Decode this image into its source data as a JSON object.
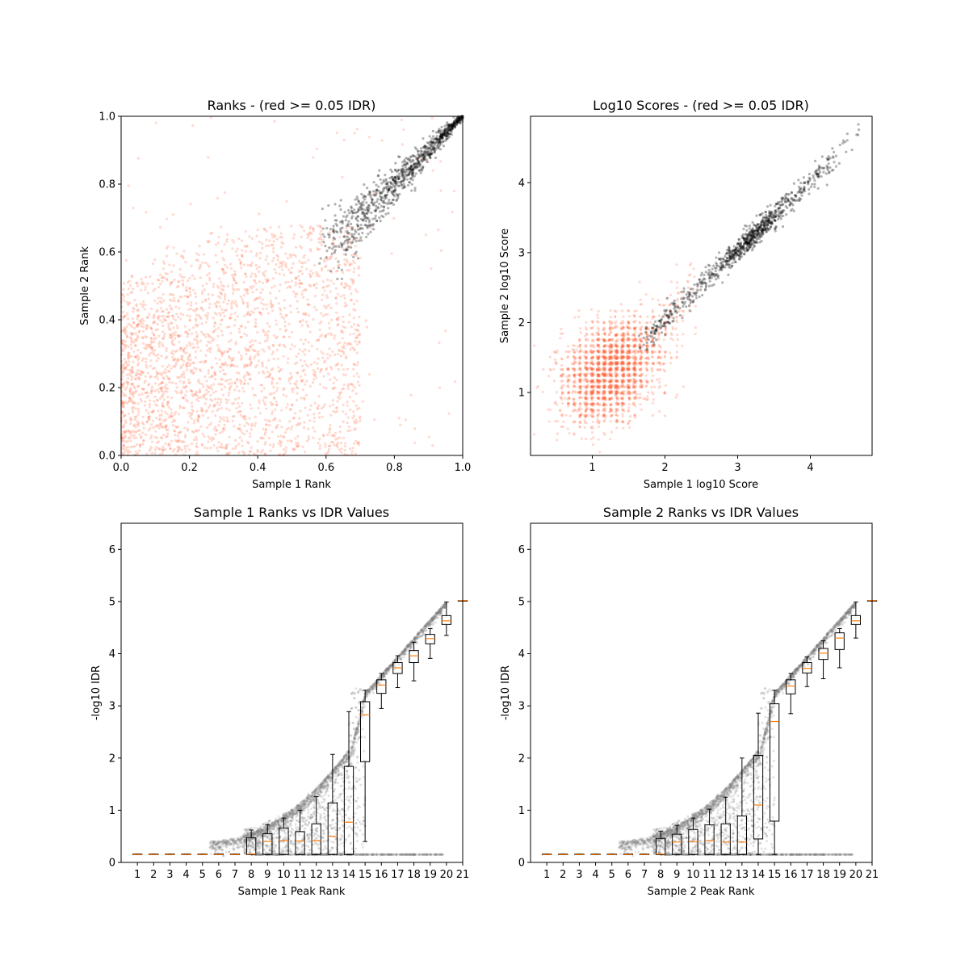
{
  "figure": {
    "background": "#ffffff",
    "colors": {
      "passed": "#000000",
      "failed": "#ff6a45",
      "median": "#ff7f0e",
      "box": "#000000"
    }
  },
  "chart_data": [
    {
      "type": "scatter",
      "title": "Ranks - (red >= 0.05 IDR)",
      "xlabel": "Sample 1 Rank",
      "ylabel": "Sample 2 Rank",
      "xlim": [
        0.0,
        1.0
      ],
      "ylim": [
        0.0,
        1.0
      ],
      "xticks": [
        "0.0",
        "0.2",
        "0.4",
        "0.6",
        "0.8",
        "1.0"
      ],
      "yticks": [
        "0.0",
        "0.2",
        "0.4",
        "0.6",
        "0.8",
        "1.0"
      ],
      "grid": false,
      "series": [
        {
          "color": "#ff6a45",
          "description": "IDR >= 0.05",
          "points_approx": 2600,
          "region": "x 0.0-0.7, y 0.0-0.68, diffuse"
        },
        {
          "color": "#000000",
          "description": "IDR < 0.05",
          "points_approx": 900,
          "region": "diagonal band from (0.6, 0.6) to (1.0, 1.0)"
        }
      ]
    },
    {
      "type": "scatter",
      "title": "Log10 Scores - (red >= 0.05 IDR)",
      "xlabel": "Sample 1 log10 Score",
      "ylabel": "Sample 2 log10 Score",
      "xlim": [
        0.15,
        4.85
      ],
      "ylim": [
        0.1,
        4.95
      ],
      "xticks": [
        "1",
        "2",
        "3",
        "4"
      ],
      "yticks": [
        "1",
        "2",
        "3",
        "4"
      ],
      "grid": false,
      "series": [
        {
          "color": "#ff6a45",
          "description": "IDR >= 0.05",
          "points_approx": 2400,
          "region": "cluster centred near (1.25, 1.3), spread 0.3-2.2"
        },
        {
          "color": "#000000",
          "description": "IDR < 0.05",
          "points_approx": 900,
          "region": "diagonal band from (1.7, 1.7) to (4.7, 4.7), densest near (3.2, 3.25)"
        }
      ]
    },
    {
      "type": "box",
      "title": "Sample 1 Ranks vs IDR Values",
      "xlabel": "Sample 1 Peak Rank",
      "ylabel": "-log10 IDR",
      "xlim": [
        0,
        21
      ],
      "ylim": [
        0,
        6.5
      ],
      "xticks": [
        "1",
        "2",
        "3",
        "4",
        "5",
        "6",
        "7",
        "8",
        "9",
        "10",
        "11",
        "12",
        "13",
        "14",
        "15",
        "16",
        "17",
        "18",
        "19",
        "20",
        "21"
      ],
      "yticks": [
        "0",
        "1",
        "2",
        "3",
        "4",
        "5",
        "6"
      ],
      "grid": false,
      "boxes": [
        {
          "x": 1,
          "q1": 0.15,
          "median": 0.15,
          "q3": 0.16,
          "lo": 0.15,
          "hi": 0.16
        },
        {
          "x": 2,
          "q1": 0.15,
          "median": 0.15,
          "q3": 0.16,
          "lo": 0.15,
          "hi": 0.16
        },
        {
          "x": 3,
          "q1": 0.15,
          "median": 0.15,
          "q3": 0.16,
          "lo": 0.15,
          "hi": 0.16
        },
        {
          "x": 4,
          "q1": 0.15,
          "median": 0.15,
          "q3": 0.16,
          "lo": 0.15,
          "hi": 0.16
        },
        {
          "x": 5,
          "q1": 0.15,
          "median": 0.15,
          "q3": 0.16,
          "lo": 0.15,
          "hi": 0.16
        },
        {
          "x": 6,
          "q1": 0.15,
          "median": 0.15,
          "q3": 0.16,
          "lo": 0.15,
          "hi": 0.16
        },
        {
          "x": 7,
          "q1": 0.15,
          "median": 0.15,
          "q3": 0.16,
          "lo": 0.15,
          "hi": 0.16
        },
        {
          "x": 8,
          "q1": 0.15,
          "median": 0.16,
          "q3": 0.47,
          "lo": 0.15,
          "hi": 0.62
        },
        {
          "x": 9,
          "q1": 0.15,
          "median": 0.4,
          "q3": 0.55,
          "lo": 0.15,
          "hi": 0.72
        },
        {
          "x": 10,
          "q1": 0.15,
          "median": 0.42,
          "q3": 0.66,
          "lo": 0.15,
          "hi": 0.85
        },
        {
          "x": 11,
          "q1": 0.15,
          "median": 0.41,
          "q3": 0.59,
          "lo": 0.15,
          "hi": 1.0
        },
        {
          "x": 12,
          "q1": 0.15,
          "median": 0.42,
          "q3": 0.74,
          "lo": 0.15,
          "hi": 1.26
        },
        {
          "x": 13,
          "q1": 0.15,
          "median": 0.5,
          "q3": 1.14,
          "lo": 0.15,
          "hi": 2.07
        },
        {
          "x": 14,
          "q1": 0.15,
          "median": 0.77,
          "q3": 1.84,
          "lo": 0.15,
          "hi": 2.89
        },
        {
          "x": 15,
          "q1": 1.93,
          "median": 2.83,
          "q3": 3.08,
          "lo": 0.4,
          "hi": 3.3
        },
        {
          "x": 16,
          "q1": 3.24,
          "median": 3.4,
          "q3": 3.5,
          "lo": 2.95,
          "hi": 3.62
        },
        {
          "x": 17,
          "q1": 3.62,
          "median": 3.73,
          "q3": 3.83,
          "lo": 3.35,
          "hi": 3.96
        },
        {
          "x": 18,
          "q1": 3.83,
          "median": 3.96,
          "q3": 4.06,
          "lo": 3.48,
          "hi": 4.22
        },
        {
          "x": 19,
          "q1": 4.19,
          "median": 4.29,
          "q3": 4.37,
          "lo": 3.91,
          "hi": 4.48
        },
        {
          "x": 20,
          "q1": 4.56,
          "median": 4.63,
          "q3": 4.73,
          "lo": 4.35,
          "hi": 4.99
        },
        {
          "x": 21,
          "q1": 5.02,
          "median": 5.02,
          "q3": 5.02,
          "lo": 5.02,
          "hi": 5.02
        }
      ],
      "background_points": {
        "color": "#808080",
        "points_approx": 3500,
        "description": "per-peak -log10 IDR values, curving from ~0.4 at rank 5.4 to 5.0 at rank 20"
      }
    },
    {
      "type": "box",
      "title": "Sample 2 Ranks vs IDR Values",
      "xlabel": "Sample 2 Peak Rank",
      "ylabel": "-log10 IDR",
      "xlim": [
        0,
        21
      ],
      "ylim": [
        0,
        6.5
      ],
      "xticks": [
        "1",
        "2",
        "3",
        "4",
        "5",
        "6",
        "7",
        "8",
        "9",
        "10",
        "11",
        "12",
        "13",
        "14",
        "15",
        "16",
        "17",
        "18",
        "19",
        "20",
        "21"
      ],
      "yticks": [
        "0",
        "1",
        "2",
        "3",
        "4",
        "5",
        "6"
      ],
      "grid": false,
      "boxes": [
        {
          "x": 1,
          "q1": 0.15,
          "median": 0.15,
          "q3": 0.16,
          "lo": 0.15,
          "hi": 0.16
        },
        {
          "x": 2,
          "q1": 0.15,
          "median": 0.15,
          "q3": 0.16,
          "lo": 0.15,
          "hi": 0.16
        },
        {
          "x": 3,
          "q1": 0.15,
          "median": 0.15,
          "q3": 0.16,
          "lo": 0.15,
          "hi": 0.16
        },
        {
          "x": 4,
          "q1": 0.15,
          "median": 0.15,
          "q3": 0.16,
          "lo": 0.15,
          "hi": 0.16
        },
        {
          "x": 5,
          "q1": 0.15,
          "median": 0.15,
          "q3": 0.16,
          "lo": 0.15,
          "hi": 0.16
        },
        {
          "x": 6,
          "q1": 0.15,
          "median": 0.15,
          "q3": 0.16,
          "lo": 0.15,
          "hi": 0.16
        },
        {
          "x": 7,
          "q1": 0.15,
          "median": 0.15,
          "q3": 0.16,
          "lo": 0.15,
          "hi": 0.16
        },
        {
          "x": 8,
          "q1": 0.15,
          "median": 0.16,
          "q3": 0.46,
          "lo": 0.15,
          "hi": 0.6
        },
        {
          "x": 9,
          "q1": 0.15,
          "median": 0.39,
          "q3": 0.54,
          "lo": 0.15,
          "hi": 0.71
        },
        {
          "x": 10,
          "q1": 0.15,
          "median": 0.4,
          "q3": 0.63,
          "lo": 0.15,
          "hi": 0.85
        },
        {
          "x": 11,
          "q1": 0.15,
          "median": 0.42,
          "q3": 0.72,
          "lo": 0.15,
          "hi": 1.02
        },
        {
          "x": 12,
          "q1": 0.15,
          "median": 0.39,
          "q3": 0.74,
          "lo": 0.15,
          "hi": 1.25
        },
        {
          "x": 13,
          "q1": 0.15,
          "median": 0.39,
          "q3": 0.89,
          "lo": 0.15,
          "hi": 2.0
        },
        {
          "x": 14,
          "q1": 0.45,
          "median": 1.1,
          "q3": 2.05,
          "lo": 0.15,
          "hi": 2.86
        },
        {
          "x": 15,
          "q1": 0.79,
          "median": 2.7,
          "q3": 3.04,
          "lo": 0.15,
          "hi": 3.3
        },
        {
          "x": 16,
          "q1": 3.23,
          "median": 3.38,
          "q3": 3.5,
          "lo": 2.85,
          "hi": 3.62
        },
        {
          "x": 17,
          "q1": 3.63,
          "median": 3.72,
          "q3": 3.83,
          "lo": 3.37,
          "hi": 3.94
        },
        {
          "x": 18,
          "q1": 3.89,
          "median": 4.01,
          "q3": 4.1,
          "lo": 3.52,
          "hi": 4.25
        },
        {
          "x": 19,
          "q1": 4.08,
          "median": 4.3,
          "q3": 4.4,
          "lo": 3.73,
          "hi": 4.48
        },
        {
          "x": 20,
          "q1": 4.56,
          "median": 4.63,
          "q3": 4.73,
          "lo": 4.3,
          "hi": 4.99
        },
        {
          "x": 21,
          "q1": 5.02,
          "median": 5.02,
          "q3": 5.02,
          "lo": 5.02,
          "hi": 5.02
        }
      ],
      "background_points": {
        "color": "#808080",
        "points_approx": 3500,
        "description": "per-peak -log10 IDR values, curving from ~0.4 at rank 5.4 to 5.0 at rank 20"
      }
    }
  ]
}
